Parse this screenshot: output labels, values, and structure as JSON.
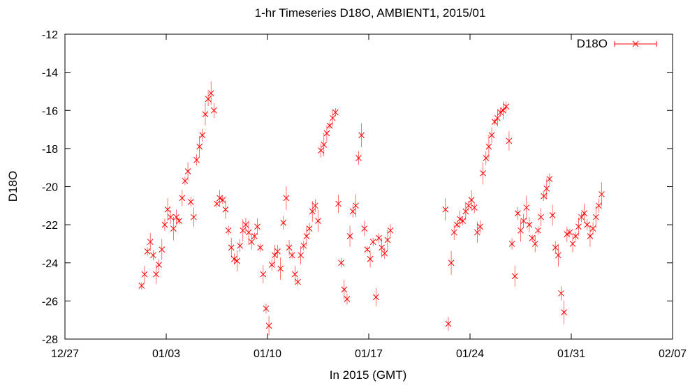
{
  "chart_data": {
    "type": "scatter",
    "title": "1-hr Timeseries D18O, AMBIENT1, 2015/01",
    "xlabel": "In 2015 (GMT)",
    "ylabel": "D18O",
    "xlim": [
      "2014-12-27",
      "2015-02-07"
    ],
    "ylim": [
      -28,
      -12
    ],
    "x_ticks": [
      "12/27",
      "01/03",
      "01/10",
      "01/17",
      "01/24",
      "01/31",
      "02/07"
    ],
    "y_ticks": [
      "-12",
      "-14",
      "-16",
      "-18",
      "-20",
      "-22",
      "-24",
      "-26",
      "-28"
    ],
    "grid": false,
    "legend": "top-right",
    "marker": "x",
    "error_bars": true,
    "series": [
      {
        "name": "D18O",
        "color": "#ff0000",
        "x_unit": "day of January 2015 (GMT)",
        "points": [
          [
            1.3,
            -25.2
          ],
          [
            1.5,
            -24.6
          ],
          [
            1.7,
            -23.4
          ],
          [
            1.9,
            -22.9
          ],
          [
            2.1,
            -23.6
          ],
          [
            2.3,
            -24.6
          ],
          [
            2.5,
            -24.1
          ],
          [
            2.7,
            -23.3
          ],
          [
            2.9,
            -22.0
          ],
          [
            3.1,
            -21.2
          ],
          [
            3.3,
            -21.6
          ],
          [
            3.5,
            -22.2
          ],
          [
            3.7,
            -21.6
          ],
          [
            3.9,
            -21.8
          ],
          [
            4.1,
            -20.6
          ],
          [
            4.3,
            -19.7
          ],
          [
            4.5,
            -19.2
          ],
          [
            4.7,
            -20.8
          ],
          [
            4.9,
            -21.6
          ],
          [
            5.1,
            -18.6
          ],
          [
            5.3,
            -17.9
          ],
          [
            5.5,
            -17.3
          ],
          [
            5.7,
            -16.2
          ],
          [
            5.9,
            -15.4
          ],
          [
            6.1,
            -15.1
          ],
          [
            6.3,
            -16.0
          ],
          [
            6.5,
            -20.9
          ],
          [
            6.7,
            -20.6
          ],
          [
            6.9,
            -20.7
          ],
          [
            7.1,
            -21.2
          ],
          [
            7.3,
            -22.3
          ],
          [
            7.5,
            -23.2
          ],
          [
            7.7,
            -23.8
          ],
          [
            7.9,
            -23.9
          ],
          [
            8.1,
            -23.1
          ],
          [
            8.3,
            -22.3
          ],
          [
            8.5,
            -22.0
          ],
          [
            8.7,
            -22.4
          ],
          [
            8.9,
            -22.9
          ],
          [
            9.1,
            -22.6
          ],
          [
            9.3,
            -22.1
          ],
          [
            9.5,
            -23.2
          ],
          [
            9.7,
            -24.6
          ],
          [
            9.9,
            -26.4
          ],
          [
            10.1,
            -27.3
          ],
          [
            10.3,
            -24.1
          ],
          [
            10.5,
            -23.6
          ],
          [
            10.7,
            -23.4
          ],
          [
            10.9,
            -24.3
          ],
          [
            11.1,
            -21.9
          ],
          [
            11.3,
            -20.6
          ],
          [
            11.5,
            -23.2
          ],
          [
            11.7,
            -23.6
          ],
          [
            11.9,
            -24.6
          ],
          [
            12.1,
            -25.0
          ],
          [
            12.3,
            -23.6
          ],
          [
            12.5,
            -23.1
          ],
          [
            12.7,
            -22.6
          ],
          [
            12.9,
            -22.2
          ],
          [
            13.1,
            -21.3
          ],
          [
            13.3,
            -21.0
          ],
          [
            13.5,
            -21.8
          ],
          [
            13.7,
            -18.1
          ],
          [
            13.9,
            -17.8
          ],
          [
            14.1,
            -17.2
          ],
          [
            14.3,
            -16.8
          ],
          [
            14.5,
            -16.4
          ],
          [
            14.7,
            -16.1
          ],
          [
            14.9,
            -20.9
          ],
          [
            15.1,
            -24.0
          ],
          [
            15.3,
            -25.4
          ],
          [
            15.5,
            -25.9
          ],
          [
            15.7,
            -22.6
          ],
          [
            15.9,
            -21.3
          ],
          [
            16.1,
            -21.0
          ],
          [
            16.3,
            -18.5
          ],
          [
            16.5,
            -17.3
          ],
          [
            16.7,
            -22.2
          ],
          [
            16.9,
            -23.3
          ],
          [
            17.1,
            -23.8
          ],
          [
            17.3,
            -22.9
          ],
          [
            17.5,
            -25.8
          ],
          [
            17.7,
            -22.7
          ],
          [
            17.9,
            -23.2
          ],
          [
            18.1,
            -23.5
          ],
          [
            18.3,
            -22.8
          ],
          [
            18.5,
            -22.3
          ],
          [
            22.3,
            -21.2
          ],
          [
            22.5,
            -27.2
          ],
          [
            22.7,
            -24.0
          ],
          [
            22.9,
            -22.4
          ],
          [
            23.1,
            -22.0
          ],
          [
            23.3,
            -21.7
          ],
          [
            23.5,
            -21.8
          ],
          [
            23.7,
            -21.3
          ],
          [
            23.9,
            -21.0
          ],
          [
            24.1,
            -20.7
          ],
          [
            24.3,
            -21.1
          ],
          [
            24.5,
            -22.4
          ],
          [
            24.7,
            -22.1
          ],
          [
            24.9,
            -19.3
          ],
          [
            25.1,
            -18.5
          ],
          [
            25.3,
            -17.9
          ],
          [
            25.5,
            -17.3
          ],
          [
            25.7,
            -16.6
          ],
          [
            25.9,
            -16.4
          ],
          [
            26.1,
            -16.1
          ],
          [
            26.3,
            -16.0
          ],
          [
            26.5,
            -15.8
          ],
          [
            26.7,
            -17.6
          ],
          [
            26.9,
            -23.0
          ],
          [
            27.1,
            -24.7
          ],
          [
            27.3,
            -21.4
          ],
          [
            27.5,
            -22.3
          ],
          [
            27.7,
            -21.8
          ],
          [
            27.9,
            -21.1
          ],
          [
            28.1,
            -22.0
          ],
          [
            28.3,
            -22.7
          ],
          [
            28.5,
            -23.0
          ],
          [
            28.7,
            -22.3
          ],
          [
            28.9,
            -21.6
          ],
          [
            29.1,
            -20.5
          ],
          [
            29.3,
            -20.1
          ],
          [
            29.5,
            -19.6
          ],
          [
            29.7,
            -21.5
          ],
          [
            29.9,
            -23.2
          ],
          [
            30.1,
            -23.6
          ],
          [
            30.3,
            -25.6
          ],
          [
            30.5,
            -26.6
          ],
          [
            30.7,
            -22.5
          ],
          [
            30.9,
            -22.4
          ],
          [
            31.1,
            -23.0
          ],
          [
            31.3,
            -22.6
          ],
          [
            31.5,
            -22.1
          ],
          [
            31.7,
            -21.6
          ],
          [
            31.9,
            -21.4
          ],
          [
            32.1,
            -22.0
          ],
          [
            32.3,
            -22.6
          ],
          [
            32.5,
            -22.2
          ],
          [
            32.7,
            -21.6
          ],
          [
            32.9,
            -21.0
          ],
          [
            33.1,
            -20.4
          ]
        ]
      }
    ]
  }
}
